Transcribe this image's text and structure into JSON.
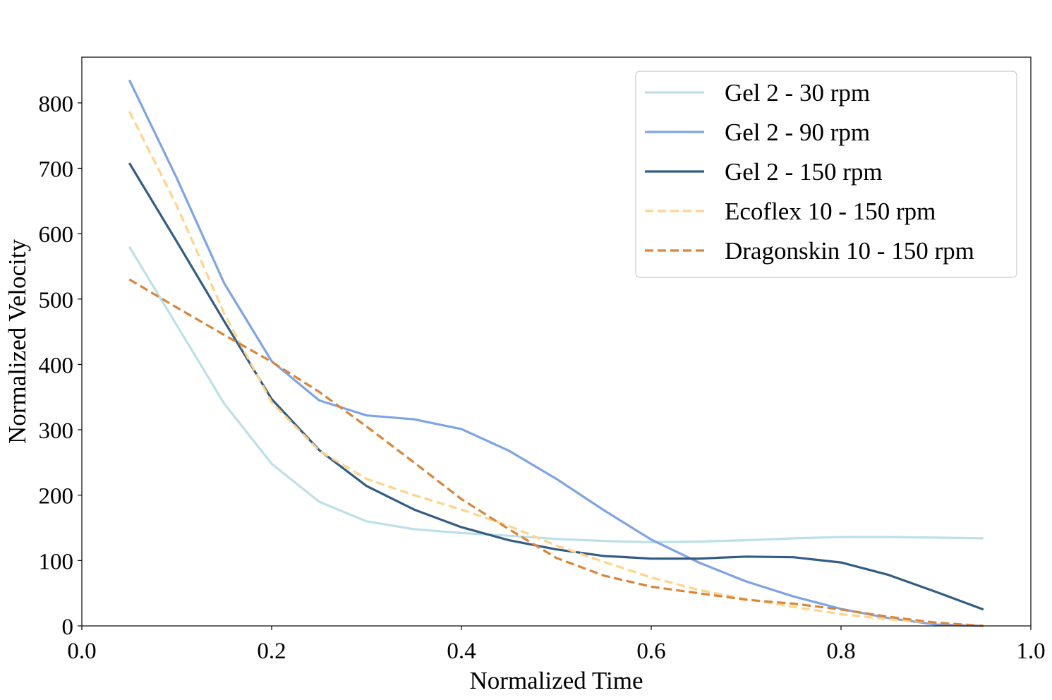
{
  "chart_data": {
    "type": "line",
    "title": "",
    "xlabel": "Normalized Time",
    "ylabel": "Normalized Velocity",
    "xlim": [
      0.0,
      1.0
    ],
    "ylim": [
      0,
      870
    ],
    "xticks": [
      0.0,
      0.2,
      0.4,
      0.6,
      0.8,
      1.0
    ],
    "xtick_labels": [
      "0.0",
      "0.2",
      "0.4",
      "0.6",
      "0.8",
      "1.0"
    ],
    "yticks": [
      0,
      100,
      200,
      300,
      400,
      500,
      600,
      700,
      800
    ],
    "ytick_labels": [
      "0",
      "100",
      "200",
      "300",
      "400",
      "500",
      "600",
      "700",
      "800"
    ],
    "grid": false,
    "legend_position": "top-right",
    "x": [
      0.05,
      0.1,
      0.15,
      0.2,
      0.25,
      0.3,
      0.35,
      0.4,
      0.45,
      0.5,
      0.55,
      0.6,
      0.65,
      0.7,
      0.75,
      0.8,
      0.85,
      0.9,
      0.95
    ],
    "series": [
      {
        "name": "Gel 2 - 30 rpm",
        "color": "#bcdfe9",
        "dash": "solid",
        "values": [
          580,
          460,
          340,
          248,
          190,
          160,
          148,
          142,
          138,
          133,
          130,
          128,
          129,
          131,
          134,
          136,
          136,
          135,
          134
        ]
      },
      {
        "name": "Gel 2 - 90 rpm",
        "color": "#7ea3e6",
        "dash": "solid",
        "values": [
          835,
          685,
          524,
          405,
          345,
          322,
          316,
          301,
          268,
          225,
          177,
          132,
          97,
          68,
          45,
          26,
          12,
          2,
          0
        ]
      },
      {
        "name": "Gel 2 - 150 rpm",
        "color": "#335c84",
        "dash": "solid",
        "values": [
          708,
          588,
          466,
          347,
          269,
          214,
          178,
          151,
          131,
          117,
          107,
          103,
          103,
          106,
          105,
          97,
          78,
          52,
          25
        ]
      },
      {
        "name": "Ecoflex 10 - 150 rpm",
        "color": "#ffd38b",
        "dash": "dashed",
        "values": [
          787,
          643,
          478,
          342,
          268,
          225,
          200,
          178,
          153,
          123,
          98,
          74,
          55,
          41,
          29,
          18,
          10,
          5,
          0
        ]
      },
      {
        "name": "Dragonskin 10 - 150 rpm",
        "color": "#d9853a",
        "dash": "dashed",
        "values": [
          530,
          487,
          445,
          404,
          358,
          305,
          250,
          194,
          148,
          104,
          77,
          60,
          50,
          40,
          34,
          25,
          14,
          5,
          0
        ]
      }
    ]
  }
}
